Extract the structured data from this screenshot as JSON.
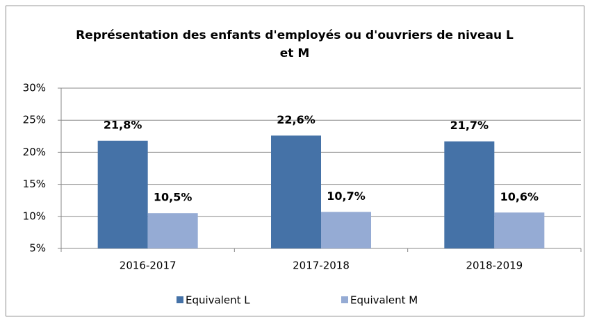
{
  "chart_data": {
    "type": "bar",
    "title": "Représentation des enfants d'employés ou d'ouvriers de niveau L et M",
    "categories": [
      "2016-2017",
      "2017-2018",
      "2018-2019"
    ],
    "series": [
      {
        "name": "Equivalent L",
        "color": "#4572a7",
        "values": [
          21.8,
          22.6,
          21.7
        ],
        "value_labels": [
          "21,8%",
          "22,6%",
          "21,7%"
        ]
      },
      {
        "name": "Equivalent M",
        "color": "#95abd4",
        "values": [
          10.5,
          10.7,
          10.6
        ],
        "value_labels": [
          "10,5%",
          "10,7%",
          "10,6%"
        ]
      }
    ],
    "ylim": [
      5,
      30
    ],
    "yticks": [
      {
        "value": 5,
        "label": "5%"
      },
      {
        "value": 10,
        "label": "10%"
      },
      {
        "value": 15,
        "label": "15%"
      },
      {
        "value": 20,
        "label": "20%"
      },
      {
        "value": 25,
        "label": "25%"
      },
      {
        "value": 30,
        "label": "30%"
      }
    ],
    "grid": true,
    "legend": "bottom"
  }
}
